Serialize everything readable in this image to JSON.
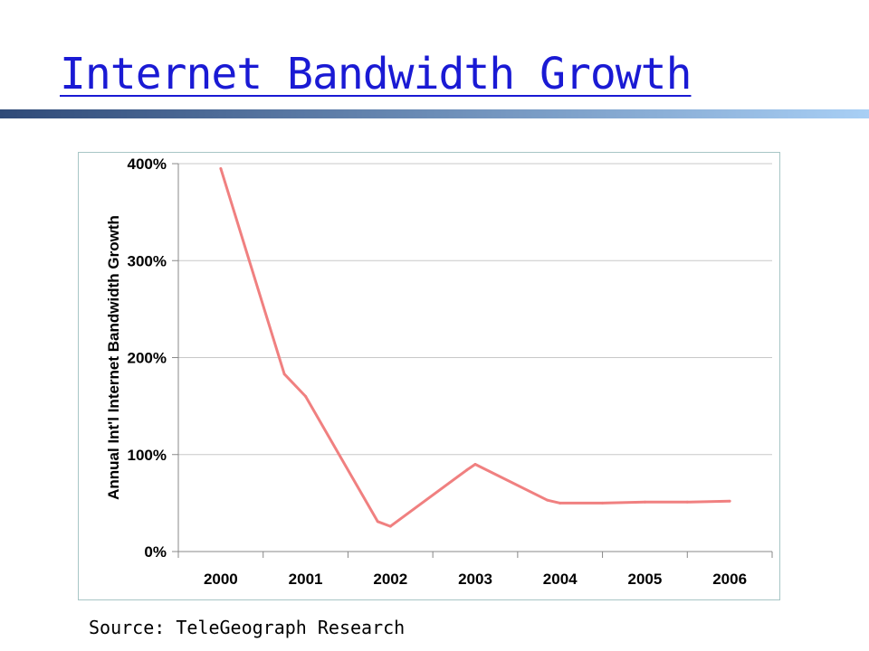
{
  "slide": {
    "title": "Internet Bandwidth Growth",
    "source": "Source: TeleGeograph Research",
    "rule_colors": [
      "#2f4a78",
      "#a8cff5"
    ]
  },
  "chart_data": {
    "type": "line",
    "title": "",
    "xlabel": "",
    "ylabel": "Annual Int'l Internet Bandwidth Growth",
    "categories": [
      "2000",
      "2001",
      "2002",
      "2003",
      "2004",
      "2005",
      "2006"
    ],
    "x": [
      2000,
      2000.75,
      2001,
      2001.85,
      2002,
      2002.9,
      2003,
      2003.85,
      2004,
      2004.5,
      2005,
      2005.5,
      2006
    ],
    "series": [
      {
        "values": [
          395,
          183,
          160,
          31,
          26,
          84,
          90,
          53,
          50,
          50,
          51,
          51,
          52
        ]
      }
    ],
    "ylim": [
      0,
      400
    ],
    "yticks": [
      0,
      100,
      200,
      300,
      400
    ],
    "ytick_labels": [
      "0%",
      "100%",
      "200%",
      "300%",
      "400%"
    ],
    "grid": true,
    "line_color": "#f08080"
  }
}
